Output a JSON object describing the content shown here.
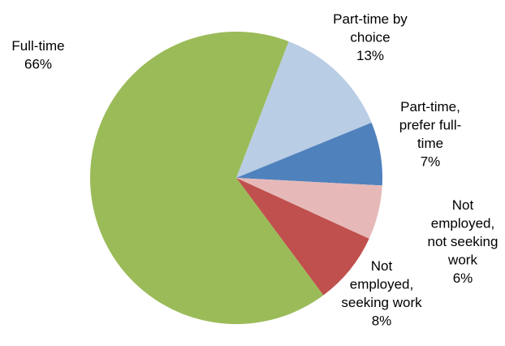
{
  "chart_data": {
    "type": "pie",
    "title": "",
    "start_angle_deg": 21,
    "direction": "clockwise",
    "legend": "none",
    "slices": [
      {
        "label_lines": [
          "Part-time by",
          "choice"
        ],
        "value": 13,
        "value_label": "13%",
        "color": "#b9cde5"
      },
      {
        "label_lines": [
          "Part-time,",
          "prefer full-",
          "time"
        ],
        "value": 7,
        "value_label": "7%",
        "color": "#4f81bd"
      },
      {
        "label_lines": [
          "Not",
          "employed,",
          "not seeking",
          "work"
        ],
        "value": 6,
        "value_label": "6%",
        "color": "#e6b9b8"
      },
      {
        "label_lines": [
          "Not",
          "employed,",
          "seeking work"
        ],
        "value": 8,
        "value_label": "8%",
        "color": "#c0504d"
      },
      {
        "label_lines": [
          "Full-time"
        ],
        "value": 66,
        "value_label": "66%",
        "color": "#9bbb59"
      }
    ]
  }
}
